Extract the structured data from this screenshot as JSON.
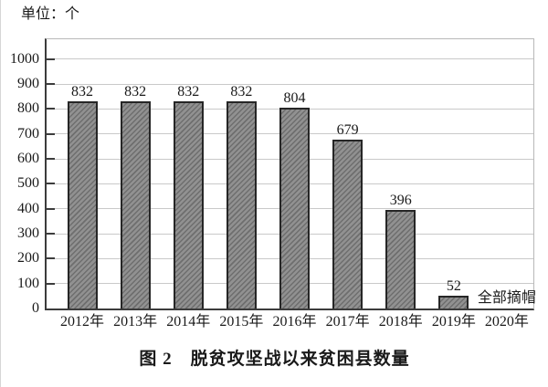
{
  "unit_label": "单位：个",
  "caption": "图 2　脱贫攻坚战以来贫困县数量",
  "colors": {
    "bar_fill": "#919191",
    "bar_hatch": "#6e6e6e",
    "bar_border": "#262626",
    "gridline": "#c9c9c9",
    "axis": "#3c3c3c",
    "frame": "#b8b8b8",
    "text": "#1a1a1a"
  },
  "chart_data": {
    "type": "bar",
    "title": "图2 脱贫攻坚战以来贫困县数量",
    "unit_note": "单位：个",
    "categories": [
      "2012年",
      "2013年",
      "2014年",
      "2015年",
      "2016年",
      "2017年",
      "2018年",
      "2019年",
      "2020年"
    ],
    "values": [
      832,
      832,
      832,
      832,
      804,
      679,
      396,
      52,
      0
    ],
    "bar_labels": [
      "832",
      "832",
      "832",
      "832",
      "804",
      "679",
      "396",
      "52",
      ""
    ],
    "y_ticks": [
      0,
      100,
      200,
      300,
      400,
      500,
      600,
      700,
      800,
      900,
      1000
    ],
    "ylim": [
      0,
      1080
    ],
    "xlabel": "",
    "ylabel": "",
    "grid": "horizontal",
    "legend": "none",
    "annotation": {
      "text": "全部摘帽",
      "category_index": 8
    }
  }
}
